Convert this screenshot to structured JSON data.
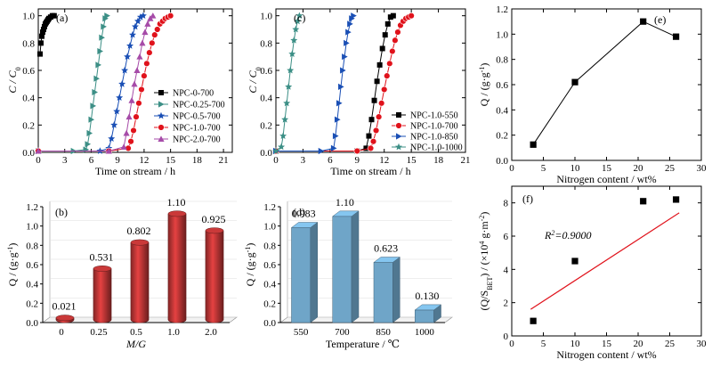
{
  "chart_data": [
    {
      "id": "a",
      "type": "line",
      "panel_label": "(a)",
      "xlabel": "Time on stream / h",
      "ylabel_main": "C / C",
      "ylabel_sub": "0",
      "xlim": [
        0,
        22
      ],
      "ylim": [
        0,
        1.05
      ],
      "xticks": [
        0,
        3,
        6,
        9,
        12,
        15,
        18,
        21
      ],
      "yticks": [
        0.0,
        0.2,
        0.4,
        0.6,
        0.8,
        1.0
      ],
      "series": [
        {
          "name": "NPC-0-700",
          "color": "#000000",
          "marker": "square",
          "x": [
            0.2,
            0.3,
            0.4,
            0.5,
            0.6,
            0.7,
            0.8,
            0.9,
            1.0,
            1.1,
            1.2,
            1.4,
            1.6,
            1.8
          ],
          "y": [
            0.72,
            0.8,
            0.85,
            0.88,
            0.9,
            0.92,
            0.94,
            0.95,
            0.96,
            0.97,
            0.98,
            0.99,
            1.0,
            1.0
          ]
        },
        {
          "name": "NPC-0.25-700",
          "color": "#3c8f86",
          "marker": "tri-right",
          "x": [
            0,
            4,
            5.4,
            5.6,
            5.8,
            6.0,
            6.2,
            6.4,
            6.6,
            6.8,
            7.0,
            7.2,
            7.4,
            7.6,
            7.8
          ],
          "y": [
            0.01,
            0.01,
            0.02,
            0.06,
            0.14,
            0.24,
            0.34,
            0.44,
            0.54,
            0.64,
            0.74,
            0.84,
            0.92,
            0.98,
            1.0
          ]
        },
        {
          "name": "NPC-0.5-700",
          "color": "#1a4fb5",
          "marker": "star",
          "x": [
            0,
            7,
            8.0,
            8.3,
            8.6,
            8.9,
            9.2,
            9.5,
            9.8,
            10.1,
            10.4,
            10.7,
            11.0,
            11.3,
            11.6,
            11.9
          ],
          "y": [
            0.01,
            0.01,
            0.03,
            0.1,
            0.2,
            0.3,
            0.4,
            0.5,
            0.6,
            0.7,
            0.78,
            0.86,
            0.92,
            0.96,
            0.99,
            1.0
          ]
        },
        {
          "name": "NPC-1.0-700",
          "color": "#e0121b",
          "marker": "circle",
          "x": [
            0,
            8,
            10.2,
            10.5,
            10.8,
            11.1,
            11.4,
            11.7,
            12.0,
            12.3,
            12.6,
            12.9,
            13.2,
            13.5,
            13.8,
            14.1,
            14.4,
            14.7,
            15.0
          ],
          "y": [
            0.01,
            0.01,
            0.03,
            0.08,
            0.16,
            0.26,
            0.36,
            0.46,
            0.56,
            0.65,
            0.73,
            0.8,
            0.86,
            0.9,
            0.94,
            0.96,
            0.98,
            0.99,
            1.0
          ]
        },
        {
          "name": "NPC-2.0-700",
          "color": "#a64ba8",
          "marker": "tri-up",
          "x": [
            0,
            8,
            9.7,
            10.0,
            10.3,
            10.6,
            10.9,
            11.2,
            11.5,
            11.8,
            12.1,
            12.4,
            12.7,
            13.0
          ],
          "y": [
            0.01,
            0.01,
            0.04,
            0.14,
            0.26,
            0.38,
            0.5,
            0.6,
            0.7,
            0.8,
            0.88,
            0.94,
            0.98,
            1.0
          ]
        }
      ],
      "legend_position": "right"
    },
    {
      "id": "b",
      "type": "bar",
      "panel_label": "(b)",
      "xlabel": "M/G",
      "ylabel_main": "Q / (g·g",
      "ylabel_sup": "-1",
      "ylabel_end": ")",
      "ylim": [
        0,
        1.2
      ],
      "yticks": [
        0.0,
        0.2,
        0.4,
        0.6,
        0.8,
        1.0,
        1.2
      ],
      "categories": [
        "0",
        "0.25",
        "0.5",
        "1.0",
        "2.0"
      ],
      "values": [
        0.021,
        0.531,
        0.802,
        1.1,
        0.925
      ],
      "value_labels": [
        "0.021",
        "0.531",
        "0.802",
        "1.10",
        "0.925"
      ],
      "bar_color": "#b03232",
      "label_color": "#b03232"
    },
    {
      "id": "c",
      "type": "line",
      "panel_label": "(c)",
      "xlabel": "Time on stream / h",
      "ylabel_main": "C / C",
      "ylabel_sub": "0",
      "xlim": [
        0,
        21
      ],
      "ylim": [
        0,
        1.05
      ],
      "xticks": [
        0,
        3,
        6,
        9,
        12,
        15,
        18,
        21
      ],
      "yticks": [
        0.0,
        0.2,
        0.4,
        0.6,
        0.8,
        1.0
      ],
      "series": [
        {
          "name": "NPC-1.0-550",
          "color": "#000000",
          "marker": "square",
          "x": [
            0,
            9,
            10.0,
            10.3,
            10.6,
            10.9,
            11.2,
            11.5,
            11.8,
            12.1,
            12.4,
            12.7,
            13.0
          ],
          "y": [
            0.01,
            0.01,
            0.03,
            0.12,
            0.24,
            0.38,
            0.52,
            0.64,
            0.76,
            0.86,
            0.94,
            0.99,
            1.0
          ]
        },
        {
          "name": "NPC-1.0-700",
          "color": "#e0121b",
          "marker": "circle",
          "x": [
            0,
            9,
            10.5,
            10.8,
            11.1,
            11.4,
            11.7,
            12.0,
            12.3,
            12.6,
            12.9,
            13.2,
            13.5,
            13.8,
            14.1,
            14.4,
            14.7,
            15.0
          ],
          "y": [
            0.01,
            0.01,
            0.03,
            0.08,
            0.16,
            0.26,
            0.36,
            0.46,
            0.56,
            0.65,
            0.74,
            0.82,
            0.88,
            0.93,
            0.96,
            0.98,
            0.99,
            1.0
          ]
        },
        {
          "name": "NPC-1.0-850",
          "color": "#1a4fb5",
          "marker": "tri-right",
          "x": [
            0,
            5,
            6.4,
            6.6,
            6.8,
            7.0,
            7.2,
            7.4,
            7.6,
            7.8,
            8.0,
            8.2,
            8.4,
            8.6
          ],
          "y": [
            0.01,
            0.01,
            0.03,
            0.12,
            0.24,
            0.36,
            0.48,
            0.6,
            0.7,
            0.8,
            0.88,
            0.94,
            0.98,
            1.0
          ]
        },
        {
          "name": "NPC-1.0-1000",
          "color": "#3c8f86",
          "marker": "star",
          "x": [
            0,
            0.6,
            0.8,
            1.0,
            1.2,
            1.4,
            1.6,
            1.8,
            2.0,
            2.2,
            2.4,
            2.6
          ],
          "y": [
            0.01,
            0.04,
            0.12,
            0.24,
            0.36,
            0.48,
            0.6,
            0.72,
            0.82,
            0.9,
            0.96,
            1.0
          ]
        }
      ],
      "legend_position": "right"
    },
    {
      "id": "d",
      "type": "bar",
      "panel_label": "(d)",
      "xlabel": "Temperature / ℃",
      "ylabel_main": "Q / (g·g",
      "ylabel_sup": "-1",
      "ylabel_end": ")",
      "ylim": [
        0,
        1.2
      ],
      "yticks": [
        0.0,
        0.2,
        0.4,
        0.6,
        0.8,
        1.0,
        1.2
      ],
      "categories": [
        "550",
        "700",
        "850",
        "1000"
      ],
      "values": [
        0.983,
        1.1,
        0.623,
        0.13
      ],
      "value_labels": [
        "0.983",
        "1.10",
        "0.623",
        "0.130"
      ],
      "bar_color": "#6fa5c8",
      "label_color": "#3a7d9a"
    },
    {
      "id": "e",
      "type": "line",
      "panel_label": "(e)",
      "xlabel": "Nitrogen content / wt%",
      "ylabel_main": "Q / (g·g",
      "ylabel_sup": "-1",
      "ylabel_end": ")",
      "xlim": [
        0,
        30
      ],
      "ylim": [
        0,
        1.2
      ],
      "xticks": [
        0,
        5,
        10,
        15,
        20,
        25,
        30
      ],
      "yticks": [
        0.0,
        0.2,
        0.4,
        0.6,
        0.8,
        1.0,
        1.2
      ],
      "series": [
        {
          "name": "",
          "color": "#000000",
          "marker": "square",
          "x": [
            3.4,
            10.0,
            20.8,
            26.0
          ],
          "y": [
            0.125,
            0.62,
            1.1,
            0.98
          ]
        }
      ]
    },
    {
      "id": "f",
      "type": "scatter",
      "panel_label": "(f)",
      "xlabel": "Nitrogen content / wt%",
      "ylabel_main": "(Q/S",
      "ylabel_sub": "BET",
      "ylabel_mid": ") / (×10",
      "ylabel_sup": "4",
      "ylabel_end": " g·m",
      "ylabel_sup2": "-2",
      "ylabel_tail": ")",
      "xlim": [
        0,
        30
      ],
      "ylim": [
        0,
        9
      ],
      "xticks": [
        0,
        5,
        10,
        15,
        20,
        25,
        30
      ],
      "yticks": [
        0,
        2,
        4,
        6,
        8
      ],
      "series": [
        {
          "name": "",
          "color": "#000000",
          "marker": "square",
          "x": [
            3.4,
            10.0,
            20.8,
            26.0
          ],
          "y": [
            0.9,
            4.5,
            8.1,
            8.2
          ]
        }
      ],
      "fit_line": {
        "x": [
          3.0,
          26.5
        ],
        "y": [
          1.6,
          7.4
        ],
        "color": "#e0121b"
      },
      "annotation": {
        "text_main": "R",
        "text_sup": "2",
        "text_end": "=0.9000"
      }
    }
  ]
}
